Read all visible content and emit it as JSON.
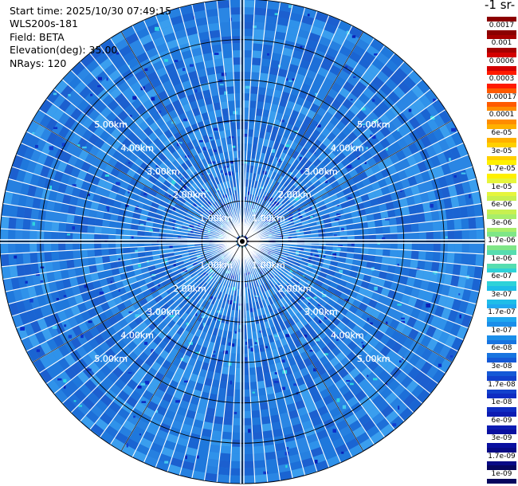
{
  "info": {
    "start_time": "Start time: 2025/10/30 07:49:15",
    "device": "WLS200s-181",
    "field": "Field: BETA",
    "elevation": "Elevation(deg): 35.00",
    "nrays": "NRays: 120"
  },
  "colorbar": {
    "title": "-1 sr-",
    "labels": [
      "0.0017",
      "0.001",
      "0.0006",
      "0.0003",
      "0.00017",
      "0.0001",
      "6e-05",
      "3e-05",
      "1.7e-05",
      "1e-05",
      "6e-06",
      "3e-06",
      "1.7e-06",
      "1e-06",
      "6e-07",
      "3e-07",
      "1.7e-07",
      "1e-07",
      "6e-08",
      "3e-08",
      "1.7e-08",
      "1e-08",
      "6e-09",
      "3e-09",
      "1.7e-09",
      "1e-09"
    ],
    "colors": [
      "#8b0000",
      "#a50000",
      "#d40000",
      "#ff1a00",
      "#ff5a00",
      "#ff8c00",
      "#ffb000",
      "#ffd000",
      "#fff000",
      "#e6f53c",
      "#c8f050",
      "#a8ee6a",
      "#7fe687",
      "#56ddb0",
      "#2ed2d8",
      "#1ebde8",
      "#20a8ef",
      "#1b8ee9",
      "#1874e0",
      "#1559d6",
      "#1241cc",
      "#0f2cc2",
      "#0c1bb2",
      "#0a10a0",
      "#080a86",
      "#06065e"
    ]
  },
  "chart_data": {
    "type": "heatmap",
    "projection": "polar PPI",
    "range_unit": "km",
    "max_range_km": 6.0,
    "range_rings_km": [
      1,
      2,
      3,
      4,
      5,
      6
    ],
    "ring_labels": [
      "1.00km",
      "2.00km",
      "3.00km",
      "4.00km",
      "5.00km"
    ],
    "nrays": 120,
    "dominant_value_range": [
      3e-08,
      1e-07
    ],
    "colorbar_scale": "log",
    "colorbar_range": [
      1e-09,
      0.0017
    ]
  }
}
